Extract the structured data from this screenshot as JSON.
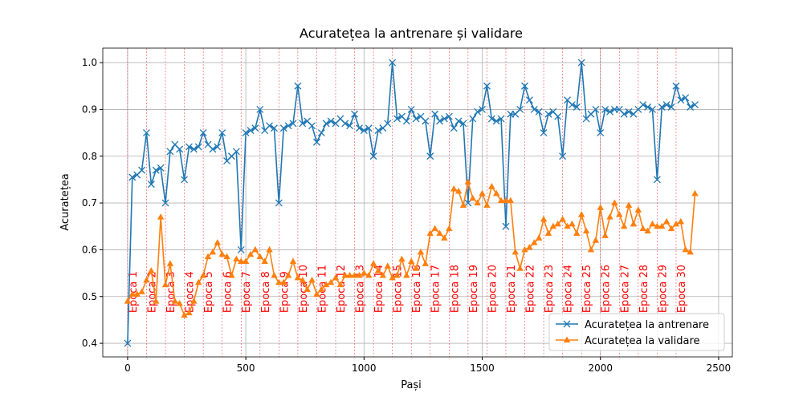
{
  "chart_data": {
    "type": "line",
    "title": "Acuratețea la antrenare și validare",
    "x_label": "Pași",
    "y_label": "Acuratețea",
    "x": [
      0,
      20,
      40,
      60,
      80,
      100,
      120,
      140,
      160,
      180,
      200,
      220,
      240,
      260,
      280,
      300,
      320,
      340,
      360,
      380,
      400,
      420,
      440,
      460,
      480,
      500,
      520,
      540,
      560,
      580,
      600,
      620,
      640,
      660,
      680,
      700,
      720,
      740,
      760,
      780,
      800,
      820,
      840,
      860,
      880,
      900,
      920,
      940,
      960,
      980,
      1000,
      1020,
      1040,
      1060,
      1080,
      1100,
      1120,
      1140,
      1160,
      1180,
      1200,
      1220,
      1240,
      1260,
      1280,
      1300,
      1320,
      1340,
      1360,
      1380,
      1400,
      1420,
      1440,
      1460,
      1480,
      1500,
      1520,
      1540,
      1560,
      1580,
      1600,
      1620,
      1640,
      1660,
      1680,
      1700,
      1720,
      1740,
      1760,
      1780,
      1800,
      1820,
      1840,
      1860,
      1880,
      1900,
      1920,
      1940,
      1960,
      1980,
      2000,
      2020,
      2040,
      2060,
      2080,
      2100,
      2120,
      2140,
      2160,
      2180,
      2200,
      2220,
      2240,
      2260,
      2280,
      2300,
      2320,
      2340,
      2360,
      2380,
      2400
    ],
    "series": [
      {
        "name": "Acuratețea la antrenare",
        "color": "#1f77b4",
        "marker": "x",
        "values": [
          0.4,
          0.755,
          0.76,
          0.77,
          0.85,
          0.74,
          0.77,
          0.775,
          0.7,
          0.81,
          0.825,
          0.815,
          0.75,
          0.82,
          0.815,
          0.82,
          0.85,
          0.825,
          0.815,
          0.82,
          0.85,
          0.79,
          0.8,
          0.81,
          0.6,
          0.85,
          0.855,
          0.86,
          0.9,
          0.855,
          0.865,
          0.86,
          0.7,
          0.86,
          0.865,
          0.87,
          0.95,
          0.87,
          0.875,
          0.865,
          0.83,
          0.85,
          0.87,
          0.875,
          0.87,
          0.88,
          0.87,
          0.865,
          0.89,
          0.86,
          0.855,
          0.86,
          0.8,
          0.855,
          0.86,
          0.87,
          1.0,
          0.88,
          0.885,
          0.875,
          0.9,
          0.88,
          0.885,
          0.875,
          0.8,
          0.89,
          0.875,
          0.88,
          0.885,
          0.86,
          0.875,
          0.87,
          0.7,
          0.88,
          0.895,
          0.9,
          0.95,
          0.88,
          0.875,
          0.88,
          0.65,
          0.89,
          0.89,
          0.9,
          0.95,
          0.92,
          0.9,
          0.895,
          0.85,
          0.89,
          0.895,
          0.885,
          0.8,
          0.92,
          0.91,
          0.905,
          1.0,
          0.88,
          0.89,
          0.9,
          0.85,
          0.9,
          0.895,
          0.9,
          0.9,
          0.89,
          0.895,
          0.89,
          0.9,
          0.91,
          0.905,
          0.9,
          0.75,
          0.905,
          0.91,
          0.905,
          0.95,
          0.92,
          0.925,
          0.905,
          0.91
        ]
      },
      {
        "name": "Acuratețea la validare",
        "color": "#ff7f0e",
        "marker": "triangle",
        "values": [
          0.49,
          0.505,
          0.505,
          0.51,
          0.535,
          0.555,
          0.49,
          0.67,
          0.525,
          0.57,
          0.49,
          0.485,
          0.46,
          0.465,
          0.49,
          0.53,
          0.545,
          0.585,
          0.595,
          0.615,
          0.59,
          0.585,
          0.545,
          0.58,
          0.575,
          0.575,
          0.59,
          0.6,
          0.585,
          0.575,
          0.6,
          0.545,
          0.53,
          0.53,
          0.545,
          0.575,
          0.54,
          0.535,
          0.515,
          0.535,
          0.505,
          0.515,
          0.525,
          0.53,
          0.54,
          0.525,
          0.545,
          0.545,
          0.545,
          0.545,
          0.55,
          0.545,
          0.57,
          0.555,
          0.545,
          0.565,
          0.54,
          0.545,
          0.58,
          0.545,
          0.575,
          0.56,
          0.595,
          0.57,
          0.635,
          0.645,
          0.635,
          0.625,
          0.645,
          0.73,
          0.725,
          0.695,
          0.745,
          0.71,
          0.7,
          0.72,
          0.695,
          0.735,
          0.72,
          0.705,
          0.705,
          0.705,
          0.595,
          0.56,
          0.6,
          0.605,
          0.615,
          0.625,
          0.665,
          0.635,
          0.65,
          0.655,
          0.665,
          0.65,
          0.655,
          0.635,
          0.675,
          0.64,
          0.6,
          0.62,
          0.69,
          0.63,
          0.67,
          0.7,
          0.675,
          0.65,
          0.695,
          0.655,
          0.685,
          0.645,
          0.64,
          0.655,
          0.65,
          0.65,
          0.66,
          0.645,
          0.655,
          0.66,
          0.6,
          0.595,
          0.72
        ]
      }
    ],
    "epochs": [
      {
        "x": 0,
        "label": "Epoca 1"
      },
      {
        "x": 80,
        "label": "Epoca 2"
      },
      {
        "x": 160,
        "label": "Epoca 3"
      },
      {
        "x": 240,
        "label": "Epoca 4"
      },
      {
        "x": 320,
        "label": "Epoca 5"
      },
      {
        "x": 400,
        "label": "Epoca 6"
      },
      {
        "x": 480,
        "label": "Epoca 7"
      },
      {
        "x": 560,
        "label": "Epoca 8"
      },
      {
        "x": 640,
        "label": "Epoca 9"
      },
      {
        "x": 720,
        "label": "Epoca 10"
      },
      {
        "x": 800,
        "label": "Epoca 11"
      },
      {
        "x": 880,
        "label": "Epoca 12"
      },
      {
        "x": 960,
        "label": "Epoca 13"
      },
      {
        "x": 1040,
        "label": "Epoca 14"
      },
      {
        "x": 1120,
        "label": "Epoca 15"
      },
      {
        "x": 1200,
        "label": "Epoca 16"
      },
      {
        "x": 1280,
        "label": "Epoca 17"
      },
      {
        "x": 1360,
        "label": "Epoca 18"
      },
      {
        "x": 1440,
        "label": "Epoca 19"
      },
      {
        "x": 1520,
        "label": "Epoca 20"
      },
      {
        "x": 1600,
        "label": "Epoca 21"
      },
      {
        "x": 1680,
        "label": "Epoca 22"
      },
      {
        "x": 1760,
        "label": "Epoca 23"
      },
      {
        "x": 1840,
        "label": "Epoca 24"
      },
      {
        "x": 1920,
        "label": "Epoca 25"
      },
      {
        "x": 2000,
        "label": "Epoca 26"
      },
      {
        "x": 2080,
        "label": "Epoca 27"
      },
      {
        "x": 2160,
        "label": "Epoca 28"
      },
      {
        "x": 2240,
        "label": "Epoca 29"
      },
      {
        "x": 2320,
        "label": "Epoca 30"
      }
    ],
    "epoch_color": "#ff0000",
    "xlim": [
      -105,
      2558
    ],
    "ylim": [
      0.371,
      1.031
    ],
    "xticks": [
      0,
      500,
      1000,
      1500,
      2000,
      2500
    ],
    "yticks": [
      0.4,
      0.5,
      0.6,
      0.7,
      0.8,
      0.9,
      {
        "value": 1.0,
        "label": "1.0"
      }
    ],
    "grid": true,
    "legend": "lower right"
  }
}
